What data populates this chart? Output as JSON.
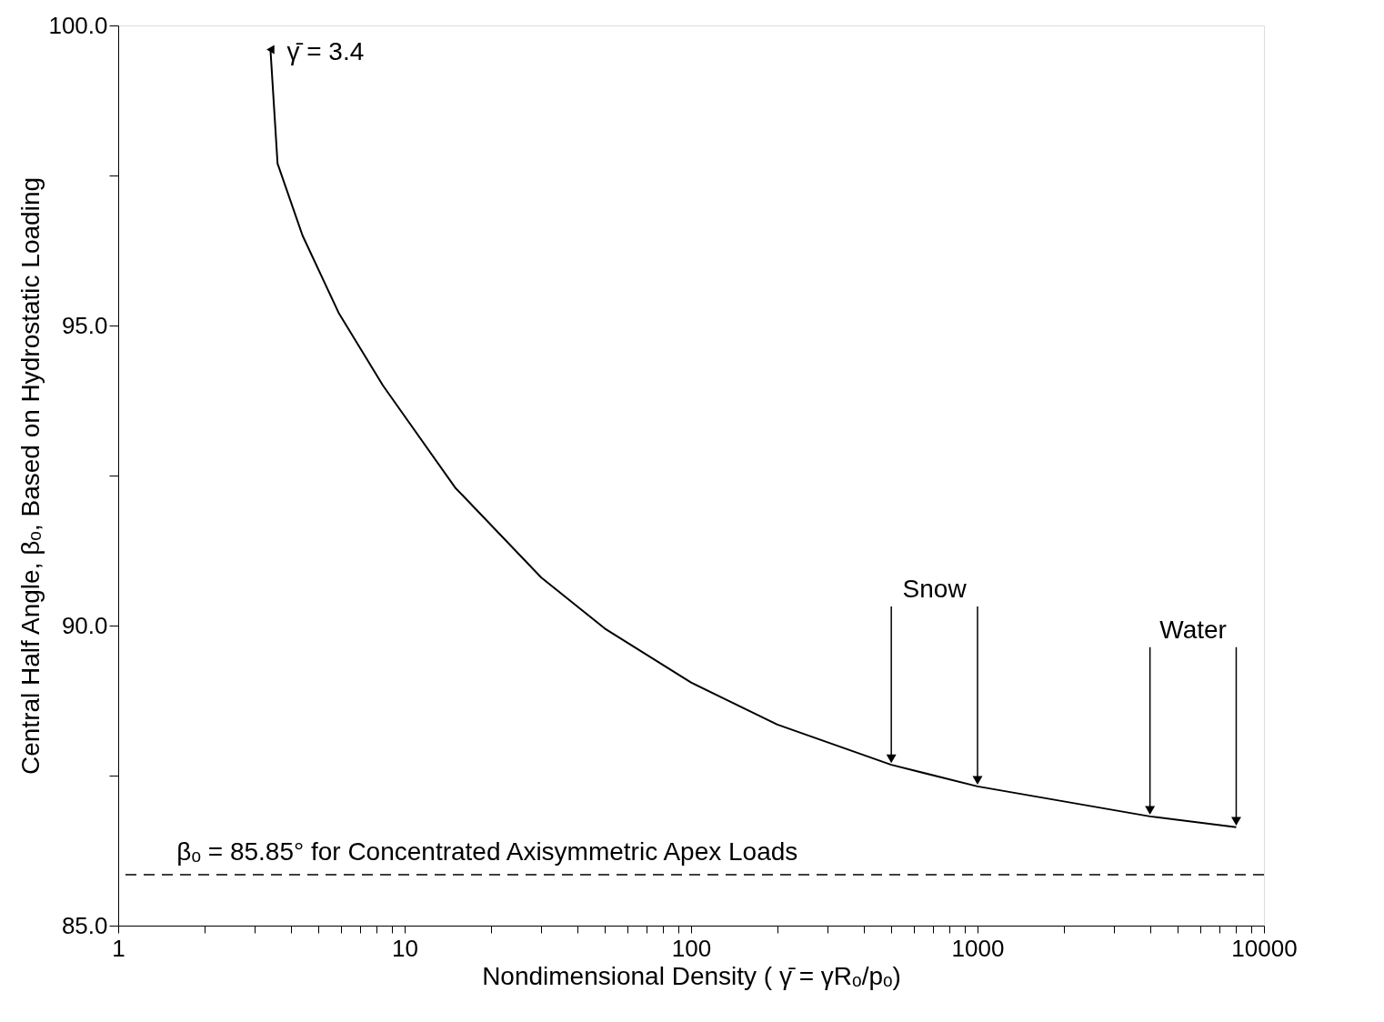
{
  "chart_data": {
    "type": "line",
    "xlabel": "Nondimensional Density ( γ̄ = γRₒ/pₒ)",
    "ylabel": "Central Half Angle, βₒ, Based on Hydrostatic Loading",
    "log": "x",
    "xlim": [
      1,
      10000
    ],
    "ylim": [
      85,
      100
    ],
    "xticks": [
      1,
      {
        "value": 2,
        "label": null
      },
      {
        "value": 3,
        "label": null
      },
      {
        "value": 4,
        "label": null
      },
      {
        "value": 5,
        "label": null
      },
      {
        "value": 6,
        "label": null
      },
      {
        "value": 7,
        "label": null
      },
      {
        "value": 8,
        "label": null
      },
      {
        "value": 9,
        "label": null
      },
      10,
      {
        "value": 20,
        "label": null
      },
      {
        "value": 30,
        "label": null
      },
      {
        "value": 40,
        "label": null
      },
      {
        "value": 50,
        "label": null
      },
      {
        "value": 60,
        "label": null
      },
      {
        "value": 70,
        "label": null
      },
      {
        "value": 80,
        "label": null
      },
      {
        "value": 90,
        "label": null
      },
      100,
      {
        "value": 200,
        "label": null
      },
      {
        "value": 300,
        "label": null
      },
      {
        "value": 400,
        "label": null
      },
      {
        "value": 500,
        "label": null
      },
      {
        "value": 600,
        "label": null
      },
      {
        "value": 700,
        "label": null
      },
      {
        "value": 800,
        "label": null
      },
      {
        "value": 900,
        "label": null
      },
      1000,
      {
        "value": 2000,
        "label": null
      },
      {
        "value": 3000,
        "label": null
      },
      {
        "value": 4000,
        "label": null
      },
      {
        "value": 5000,
        "label": null
      },
      {
        "value": 6000,
        "label": null
      },
      {
        "value": 7000,
        "label": null
      },
      {
        "value": 8000,
        "label": null
      },
      {
        "value": 9000,
        "label": null
      },
      10000
    ],
    "yticks": [
      {
        "value": 85,
        "label": "85.0"
      },
      {
        "value": 87.5,
        "label": null
      },
      {
        "value": 90,
        "label": "90.0"
      },
      {
        "value": 92.5,
        "label": null
      },
      {
        "value": 95,
        "label": "95.0"
      },
      {
        "value": 97.5,
        "label": null
      },
      {
        "value": 100,
        "label": "100.0"
      }
    ],
    "grid": false,
    "marker": "none",
    "line_style": "solid",
    "series": [
      {
        "color": "#000000",
        "x": [
          3.4,
          3.6,
          4.4,
          5.9,
          8.4,
          15,
          30,
          50,
          100,
          200,
          500,
          1000,
          4000,
          8000
        ],
        "values": [
          99.6,
          97.7,
          96.5,
          95.2,
          94.0,
          92.3,
          90.8,
          89.95,
          89.05,
          88.35,
          87.68,
          87.32,
          86.82,
          86.64
        ]
      }
    ],
    "ref_lines": [
      {
        "axis": "y",
        "value": 85.85,
        "label": "βₒ = 85.85° for Concentrated Axisymmetric Apex Loads",
        "line_style": "dashed",
        "color": "#000000"
      }
    ],
    "annotations": [
      {
        "text": "γ̄ = 3.4",
        "x": 3.4,
        "y": 99.6
      },
      {
        "text": "Snow",
        "x": 1000,
        "y": 87.32
      },
      {
        "text": "Water",
        "x": 8000,
        "y": 86.64
      }
    ]
  }
}
